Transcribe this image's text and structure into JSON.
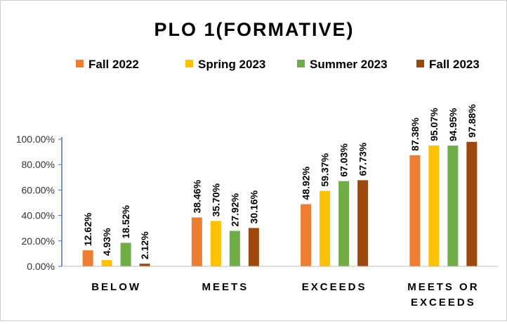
{
  "chart_data": {
    "type": "bar",
    "title": "PLO 1(FORMATIVE)",
    "categories": [
      "BELOW",
      "MEETS",
      "EXCEEDS",
      "MEETS OR EXCEEDS"
    ],
    "series": [
      {
        "name": "Fall 2022",
        "color": "#ED7D31",
        "values": [
          12.62,
          38.46,
          48.92,
          87.38
        ],
        "labels": [
          "12.62%",
          "38.46%",
          "48.92%",
          "87.38%"
        ]
      },
      {
        "name": "Spring 2023",
        "color": "#FFC000",
        "values": [
          4.93,
          35.7,
          59.37,
          95.07
        ],
        "labels": [
          "4.93%",
          "35.70%",
          "59.37%",
          "95.07%"
        ]
      },
      {
        "name": "Summer 2023",
        "color": "#70AD47",
        "values": [
          18.52,
          27.92,
          67.03,
          94.95
        ],
        "labels": [
          "18.52%",
          "27.92%",
          "67.03%",
          "94.95%"
        ]
      },
      {
        "name": "Fall 2023",
        "color": "#9E480E",
        "values": [
          2.12,
          30.16,
          67.73,
          97.88
        ],
        "labels": [
          "2.12%",
          "30.16%",
          "67.73%",
          "97.88%"
        ]
      }
    ],
    "yticks": [
      0,
      20,
      40,
      60,
      80,
      100
    ],
    "ytick_labels": [
      "0.00%",
      "20.00%",
      "40.00%",
      "60.00%",
      "80.00%",
      "100.00%"
    ],
    "ylim": [
      0,
      100
    ],
    "xlabel": "",
    "ylabel": "",
    "grid": false,
    "legend": "top"
  }
}
